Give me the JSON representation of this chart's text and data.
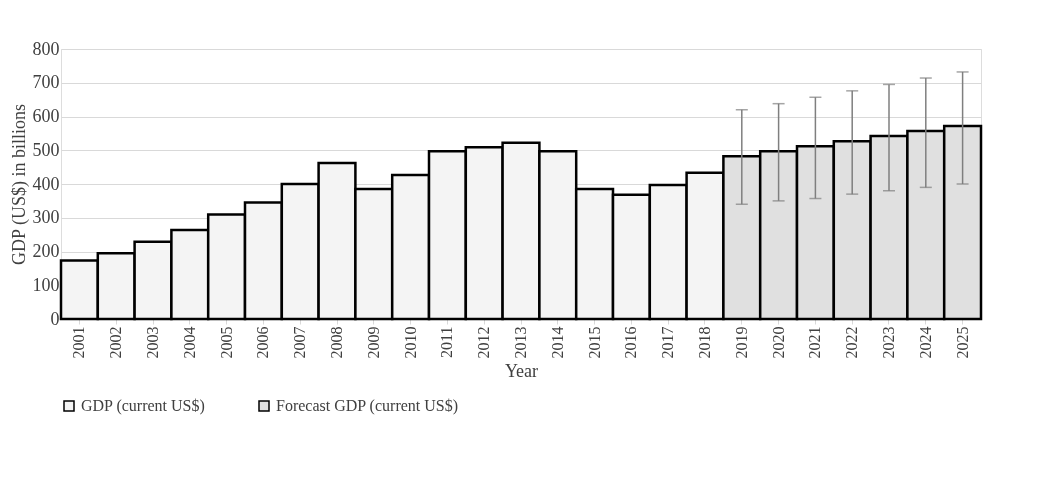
{
  "chart_data": {
    "type": "bar",
    "xlabel": "Year",
    "ylabel": "GDP (US$) in billions",
    "categories": [
      "2001",
      "2002",
      "2003",
      "2004",
      "2005",
      "2006",
      "2007",
      "2008",
      "2009",
      "2010",
      "2011",
      "2012",
      "2013",
      "2014",
      "2015",
      "2016",
      "2017",
      "2018",
      "2019",
      "2020",
      "2021",
      "2022",
      "2023",
      "2024",
      "2025"
    ],
    "series": [
      {
        "name": "GDP (current US$)",
        "color": "#f4f4f4",
        "values": [
          173,
          195,
          229,
          264,
          310,
          345,
          400,
          462,
          385,
          427,
          497,
          509,
          522,
          497,
          385,
          368,
          397,
          433,
          null,
          null,
          null,
          null,
          null,
          null,
          null
        ]
      },
      {
        "name": "Forecast GDP (current US$)",
        "color": "#e0e0e0",
        "values": [
          null,
          null,
          null,
          null,
          null,
          null,
          null,
          null,
          null,
          null,
          null,
          null,
          null,
          null,
          null,
          null,
          null,
          null,
          482,
          497,
          512,
          527,
          542,
          557,
          572
        ],
        "errors": [
          null,
          null,
          null,
          null,
          null,
          null,
          null,
          null,
          null,
          null,
          null,
          null,
          null,
          null,
          null,
          null,
          null,
          null,
          [
            340,
            620
          ],
          [
            350,
            638
          ],
          [
            357,
            657
          ],
          [
            370,
            676
          ],
          [
            380,
            695
          ],
          [
            390,
            714
          ],
          [
            400,
            732
          ]
        ]
      }
    ],
    "ylim": [
      0,
      800
    ],
    "yticks": [
      0,
      100,
      200,
      300,
      400,
      500,
      600,
      700,
      800
    ],
    "grid": "y",
    "legend": "bottom"
  }
}
